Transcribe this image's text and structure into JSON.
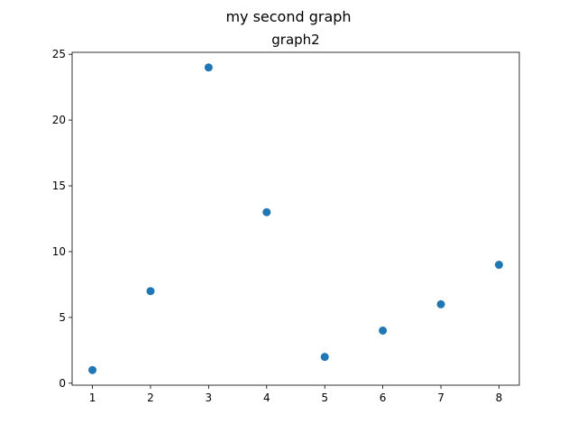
{
  "chart_data": {
    "type": "scatter",
    "suptitle": "my second graph",
    "title": "graph2",
    "xlabel": "",
    "ylabel": "",
    "x": [
      1,
      2,
      3,
      4,
      5,
      6,
      7,
      8
    ],
    "y": [
      1,
      7,
      24,
      13,
      2,
      4,
      6,
      9
    ],
    "xlim": [
      0.65,
      8.35
    ],
    "ylim": [
      -0.15,
      25.15
    ],
    "xticks": [
      1,
      2,
      3,
      4,
      5,
      6,
      7,
      8
    ],
    "yticks": [
      0,
      5,
      10,
      15,
      20,
      25
    ],
    "xtick_labels": [
      "1",
      "2",
      "3",
      "4",
      "5",
      "6",
      "7",
      "8"
    ],
    "ytick_labels": [
      "0",
      "5",
      "10",
      "15",
      "20",
      "25"
    ],
    "grid": false,
    "legend": "none",
    "marker_color": "#1f77b4"
  }
}
